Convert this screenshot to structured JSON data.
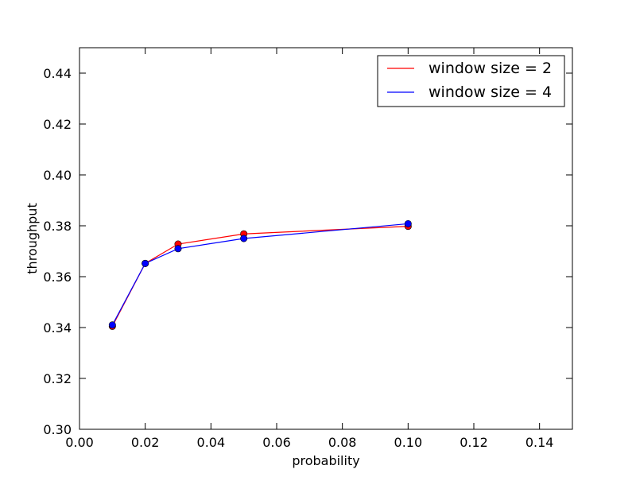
{
  "chart_data": {
    "type": "line",
    "title": "",
    "xlabel": "probability",
    "ylabel": "throughput",
    "xlim": [
      0.0,
      0.15
    ],
    "ylim": [
      0.3,
      0.45
    ],
    "x_ticks": [
      0.0,
      0.02,
      0.04,
      0.06,
      0.08,
      0.1,
      0.12,
      0.14
    ],
    "x_tick_labels": [
      "0.00",
      "0.02",
      "0.04",
      "0.06",
      "0.08",
      "0.10",
      "0.12",
      "0.14"
    ],
    "y_ticks": [
      0.3,
      0.32,
      0.34,
      0.36,
      0.38,
      0.4,
      0.42,
      0.44
    ],
    "y_tick_labels": [
      "0.30",
      "0.32",
      "0.34",
      "0.36",
      "0.38",
      "0.40",
      "0.42",
      "0.44"
    ],
    "grid": false,
    "legend_position": "top-right",
    "series": [
      {
        "name": "window size = 2",
        "color": "#ff0000",
        "x": [
          0.01,
          0.02,
          0.03,
          0.05,
          0.1
        ],
        "y": [
          0.3405,
          0.3652,
          0.3728,
          0.3768,
          0.3798
        ]
      },
      {
        "name": "window size = 4",
        "color": "#0000ff",
        "x": [
          0.01,
          0.02,
          0.03,
          0.05,
          0.1
        ],
        "y": [
          0.341,
          0.3652,
          0.371,
          0.375,
          0.3808
        ]
      }
    ]
  }
}
